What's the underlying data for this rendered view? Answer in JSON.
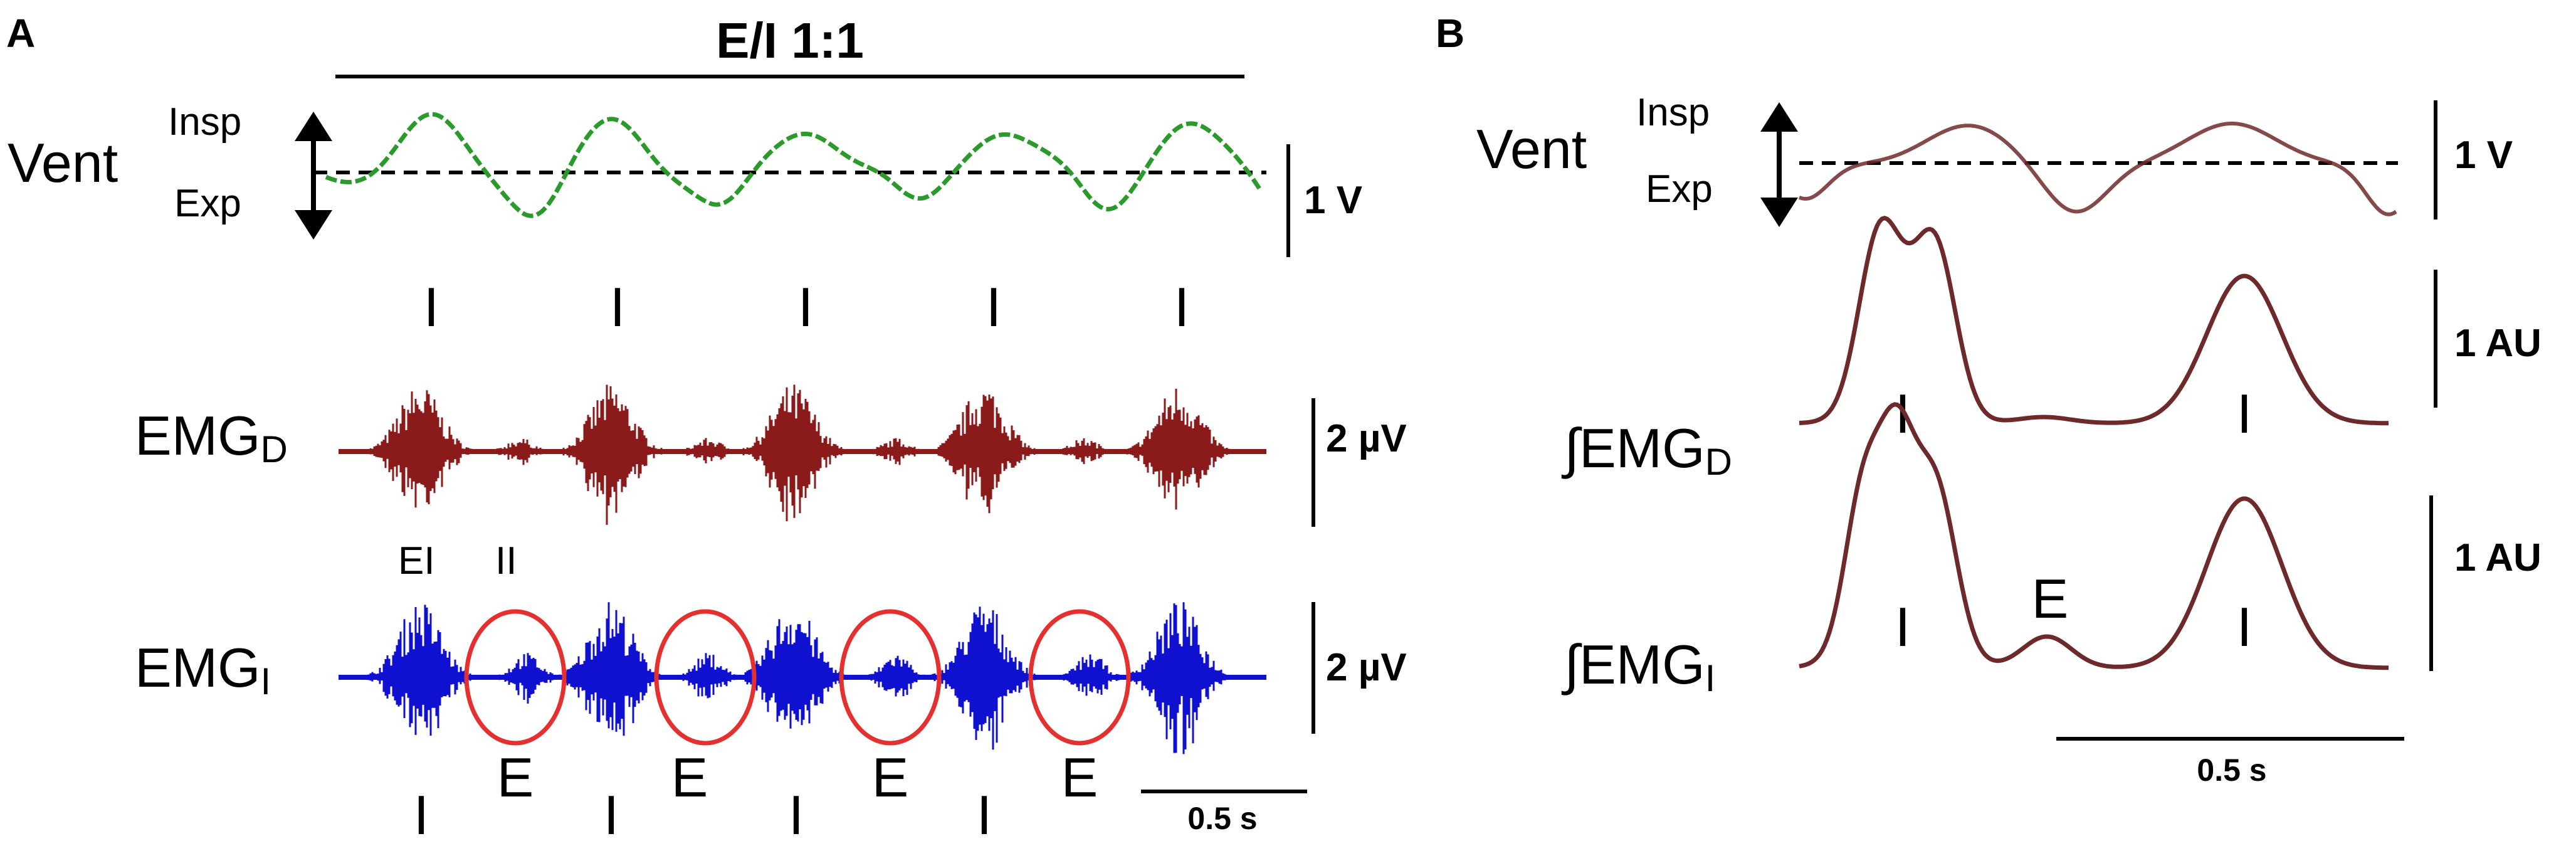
{
  "panel_a": {
    "label": "A",
    "condition": "E/I  1:1",
    "vent_label": "Vent",
    "insp_label": "Insp",
    "exp_label": "Exp",
    "vent_scale": "1 V",
    "emg_d_label": "EMG",
    "emg_d_sub": "D",
    "emg_d_scale": "2 µV",
    "emg_i_label": "EMG",
    "emg_i_sub": "I",
    "emg_i_scale": "2 µV",
    "ei_label": "EI",
    "ii_label": "II",
    "time_scale": "0.5 s",
    "i_marker": "I",
    "e_marker": "E",
    "vent_color": "#2a9a2a",
    "emg_d_color": "#8b1a1a",
    "emg_i_color": "#1010d0",
    "circle_color": "#e53030"
  },
  "panel_b": {
    "label": "B",
    "vent_label": "Vent",
    "insp_label": "Insp",
    "exp_label": "Exp",
    "vent_scale": "1 V",
    "iemg_d_label": "∫EMG",
    "iemg_d_sub": "D",
    "iemg_d_scale": "1 AU",
    "iemg_i_label": "∫EMG",
    "iemg_i_sub": "I",
    "iemg_i_scale": "1 AU",
    "time_scale": "0.5 s",
    "i_marker": "I",
    "e_marker": "E",
    "trace_color": "#6e2a2a"
  }
}
